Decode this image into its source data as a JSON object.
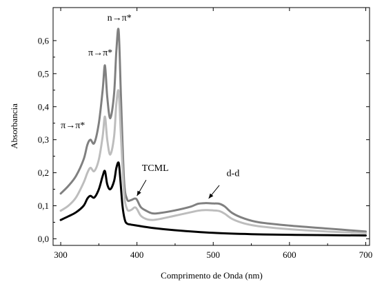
{
  "chart_data": {
    "type": "line",
    "xlabel": "Comprimento de Onda (nm)",
    "ylabel": "Absorbancia",
    "xlim": [
      290,
      705
    ],
    "ylim": [
      -0.02,
      0.7
    ],
    "xticks": [
      300,
      400,
      500,
      600,
      700
    ],
    "xtick_labels": [
      "300",
      "400",
      "500",
      "600",
      "700"
    ],
    "yticks": [
      0.0,
      0.1,
      0.2,
      0.3,
      0.4,
      0.5,
      0.6
    ],
    "ytick_labels": [
      "0,0",
      "0,1",
      "0,2",
      "0,3",
      "0,4",
      "0,5",
      "0,6"
    ],
    "grid": false,
    "series": [
      {
        "color": "#808080",
        "x": [
          300,
          310,
          320,
          330,
          335,
          339,
          344,
          350,
          355,
          358,
          361,
          365,
          370,
          373,
          376,
          379,
          383,
          387,
          392,
          397,
          400,
          405,
          412,
          420,
          430,
          450,
          470,
          480,
          490,
          500,
          508,
          515,
          525,
          540,
          560,
          600,
          650,
          700
        ],
        "y": [
          0.137,
          0.16,
          0.19,
          0.24,
          0.285,
          0.3,
          0.29,
          0.35,
          0.45,
          0.525,
          0.43,
          0.365,
          0.44,
          0.57,
          0.63,
          0.43,
          0.18,
          0.12,
          0.117,
          0.122,
          0.118,
          0.096,
          0.085,
          0.077,
          0.078,
          0.086,
          0.097,
          0.106,
          0.108,
          0.107,
          0.106,
          0.098,
          0.078,
          0.062,
          0.05,
          0.04,
          0.031,
          0.022
        ]
      },
      {
        "color": "#bdbdbd",
        "x": [
          300,
          310,
          320,
          330,
          335,
          339,
          344,
          350,
          355,
          358,
          361,
          365,
          370,
          373,
          376,
          379,
          383,
          387,
          392,
          397,
          400,
          405,
          412,
          420,
          430,
          450,
          470,
          480,
          490,
          500,
          508,
          515,
          525,
          540,
          560,
          600,
          650,
          700
        ],
        "y": [
          0.085,
          0.1,
          0.125,
          0.17,
          0.2,
          0.215,
          0.205,
          0.24,
          0.31,
          0.37,
          0.3,
          0.255,
          0.31,
          0.41,
          0.445,
          0.31,
          0.14,
          0.09,
          0.087,
          0.095,
          0.09,
          0.07,
          0.06,
          0.057,
          0.06,
          0.07,
          0.08,
          0.085,
          0.087,
          0.086,
          0.084,
          0.076,
          0.06,
          0.047,
          0.038,
          0.029,
          0.022,
          0.017
        ]
      },
      {
        "color": "#000000",
        "x": [
          300,
          310,
          320,
          330,
          335,
          339,
          344,
          350,
          355,
          358,
          361,
          365,
          370,
          373,
          376,
          378,
          381,
          384,
          387,
          392,
          400,
          420,
          450,
          500,
          550,
          600,
          650,
          700
        ],
        "y": [
          0.057,
          0.068,
          0.08,
          0.1,
          0.122,
          0.13,
          0.125,
          0.15,
          0.19,
          0.205,
          0.165,
          0.15,
          0.175,
          0.215,
          0.23,
          0.185,
          0.1,
          0.058,
          0.046,
          0.043,
          0.04,
          0.033,
          0.026,
          0.018,
          0.014,
          0.012,
          0.011,
          0.01
        ]
      }
    ],
    "annotations": [
      {
        "text": "n→π*",
        "x": 377,
        "y": 0.66
      },
      {
        "text": "π→π*",
        "x": 352,
        "y": 0.555
      },
      {
        "text": "π→π*",
        "x": 316,
        "y": 0.335
      },
      {
        "text": "TCML",
        "x": 424,
        "y": 0.205
      },
      {
        "text": "d-d",
        "x": 526,
        "y": 0.19
      }
    ]
  }
}
